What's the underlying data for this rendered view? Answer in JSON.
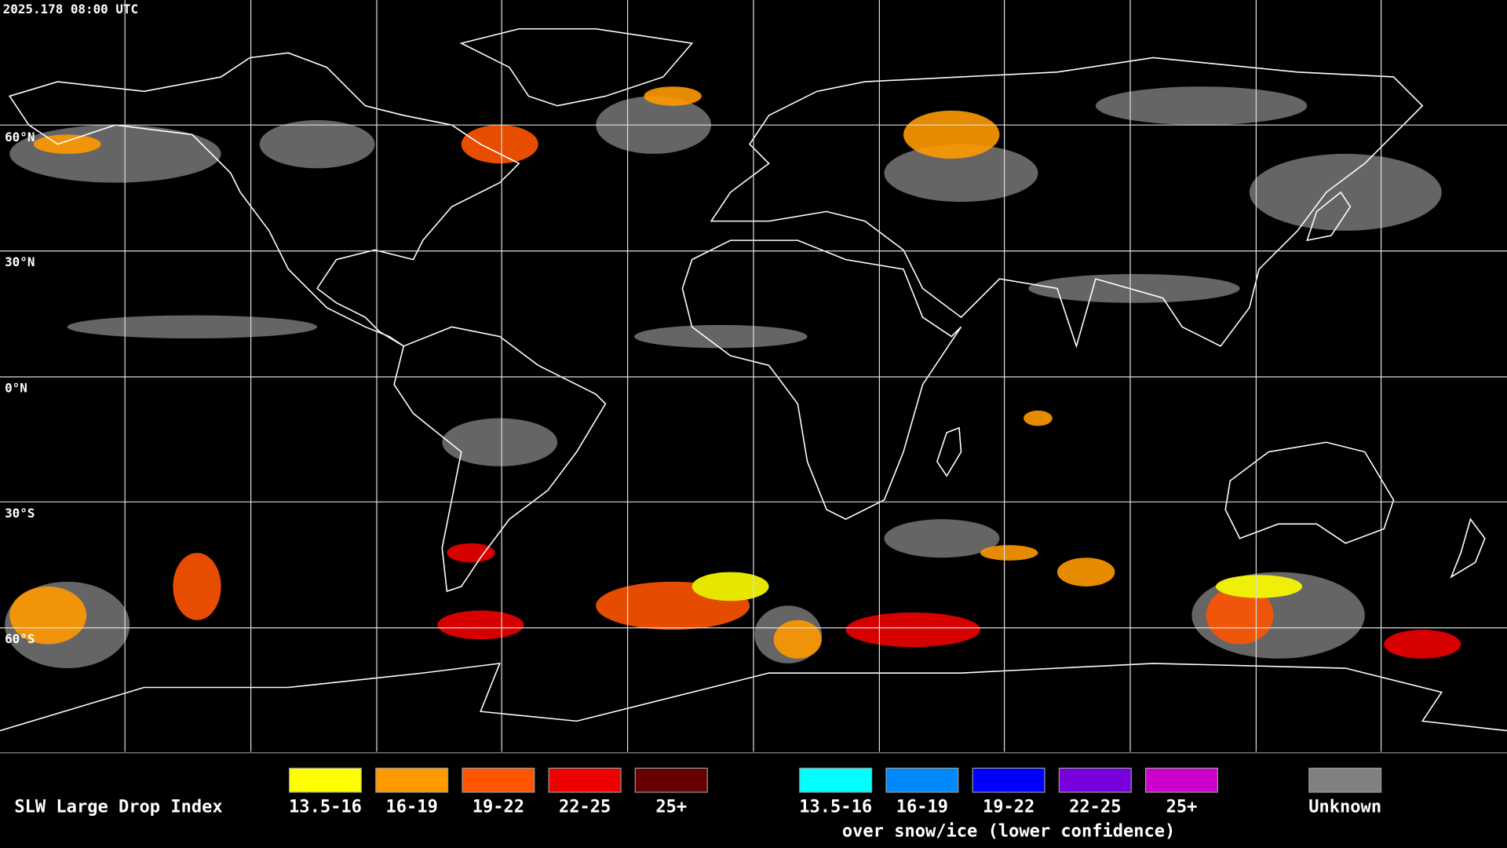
{
  "header": {
    "timestamp": "2025.178 08:00 UTC"
  },
  "map": {
    "lat_labels": [
      "60°N",
      "30°N",
      "0°N",
      "30°S",
      "60°S"
    ]
  },
  "legend": {
    "title": "SLW Large Drop Index",
    "groups": [
      {
        "items": [
          {
            "label": "13.5-16",
            "color": "#ffff00"
          },
          {
            "label": "16-19",
            "color": "#ff9900"
          },
          {
            "label": "19-22",
            "color": "#ff5500"
          },
          {
            "label": "22-25",
            "color": "#ee0000"
          },
          {
            "label": "25+",
            "color": "#660000"
          }
        ]
      },
      {
        "caption": "over snow/ice (lower confidence)",
        "items": [
          {
            "label": "13.5-16",
            "color": "#00ffff"
          },
          {
            "label": "16-19",
            "color": "#0088ff"
          },
          {
            "label": "19-22",
            "color": "#0000ff"
          },
          {
            "label": "22-25",
            "color": "#7700dd"
          },
          {
            "label": "25+",
            "color": "#cc00cc"
          }
        ]
      },
      {
        "items": [
          {
            "label": "Unknown",
            "color": "#808080"
          }
        ]
      }
    ]
  }
}
